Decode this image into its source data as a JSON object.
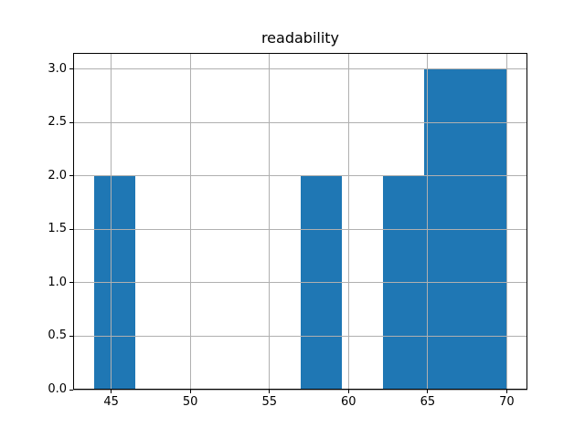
{
  "figure": {
    "background": "#ffffff"
  },
  "chart_data": {
    "type": "bar",
    "subtype": "histogram",
    "title": "readability",
    "bin_edges": [
      43.9,
      46.51,
      49.12,
      51.73,
      54.34,
      56.95,
      59.56,
      62.17,
      64.78,
      67.39,
      70.0
    ],
    "counts": [
      2,
      0,
      0,
      0,
      0,
      2,
      0,
      2,
      3,
      3
    ],
    "x_ticks": [
      45,
      50,
      55,
      60,
      65,
      70
    ],
    "x_tick_labels": [
      "45",
      "50",
      "55",
      "60",
      "65",
      "70"
    ],
    "y_ticks": [
      0.0,
      0.5,
      1.0,
      1.5,
      2.0,
      2.5,
      3.0
    ],
    "y_tick_labels": [
      "0.0",
      "0.5",
      "1.0",
      "1.5",
      "2.0",
      "2.5",
      "3.0"
    ],
    "xlim": [
      42.595,
      71.305
    ],
    "ylim": [
      0,
      3.15
    ],
    "grid": true,
    "legend_position": "none",
    "bar_color": "#1f77b4",
    "grid_color": "#b0b0b0",
    "spine_color": "#000000",
    "tick_color": "#000000",
    "text_color": "#000000"
  }
}
